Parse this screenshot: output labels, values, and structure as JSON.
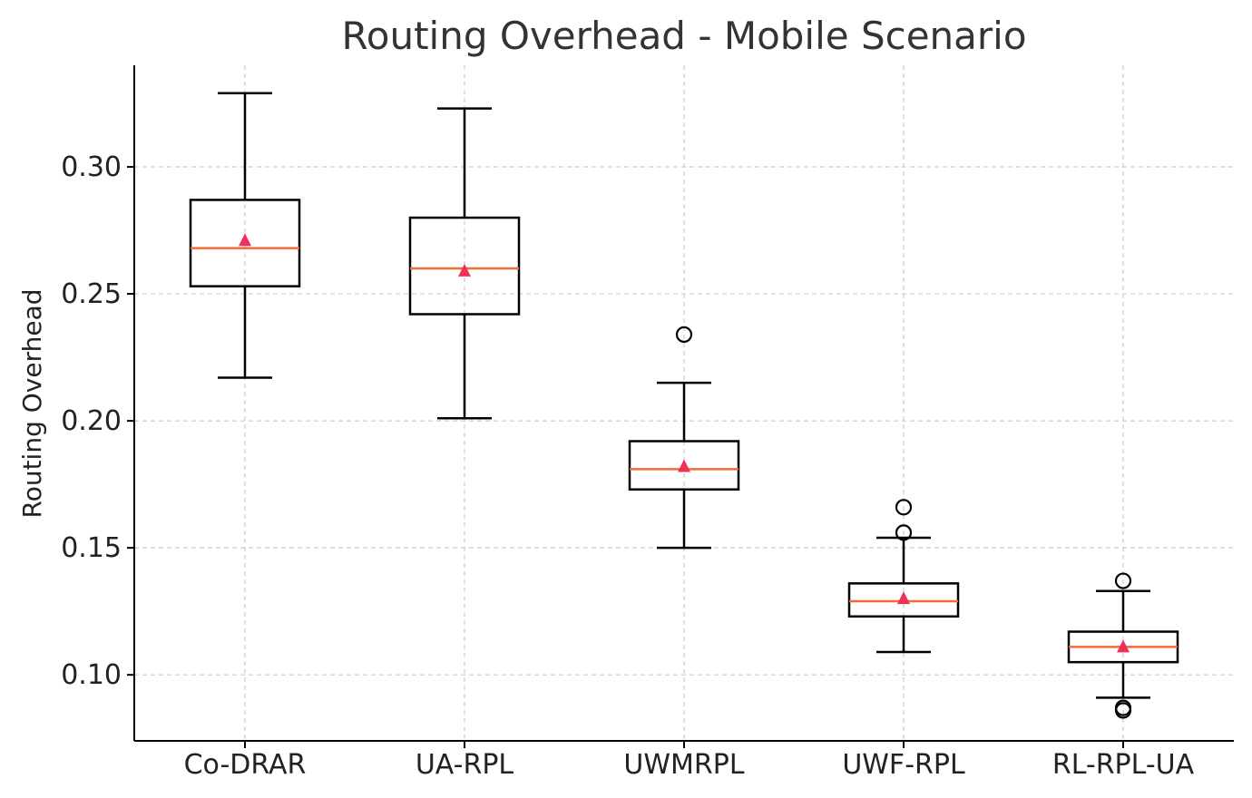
{
  "chart_data": {
    "type": "box",
    "title": "Routing Overhead - Mobile Scenario",
    "xlabel": "",
    "ylabel": "Routing Overhead",
    "ylim": [
      0.074,
      0.34
    ],
    "yticks": [
      0.1,
      0.15,
      0.2,
      0.25,
      0.3
    ],
    "ytick_labels": [
      "0.10",
      "0.15",
      "0.20",
      "0.25",
      "0.30"
    ],
    "grid": true,
    "show_means": true,
    "colors": {
      "box": "#000000",
      "median": "#ef6c35",
      "mean": "#f0305a",
      "grid": "#cccccc"
    },
    "categories": [
      "Co-DRAR",
      "UA-RPL",
      "UWMRPL",
      "UWF-RPL",
      "RL-RPL-UA"
    ],
    "series": [
      {
        "category": "Co-DRAR",
        "whisker_low": 0.217,
        "q1": 0.253,
        "median": 0.268,
        "q3": 0.287,
        "whisker_high": 0.329,
        "mean": 0.271,
        "outliers": []
      },
      {
        "category": "UA-RPL",
        "whisker_low": 0.201,
        "q1": 0.242,
        "median": 0.26,
        "q3": 0.28,
        "whisker_high": 0.323,
        "mean": 0.259,
        "outliers": []
      },
      {
        "category": "UWMRPL",
        "whisker_low": 0.15,
        "q1": 0.173,
        "median": 0.181,
        "q3": 0.192,
        "whisker_high": 0.215,
        "mean": 0.182,
        "outliers": [
          0.234
        ]
      },
      {
        "category": "UWF-RPL",
        "whisker_low": 0.109,
        "q1": 0.123,
        "median": 0.129,
        "q3": 0.136,
        "whisker_high": 0.154,
        "mean": 0.13,
        "outliers": [
          0.156,
          0.166
        ]
      },
      {
        "category": "RL-RPL-UA",
        "whisker_low": 0.091,
        "q1": 0.105,
        "median": 0.111,
        "q3": 0.117,
        "whisker_high": 0.133,
        "mean": 0.111,
        "outliers": [
          0.137,
          0.086,
          0.087
        ]
      }
    ]
  }
}
